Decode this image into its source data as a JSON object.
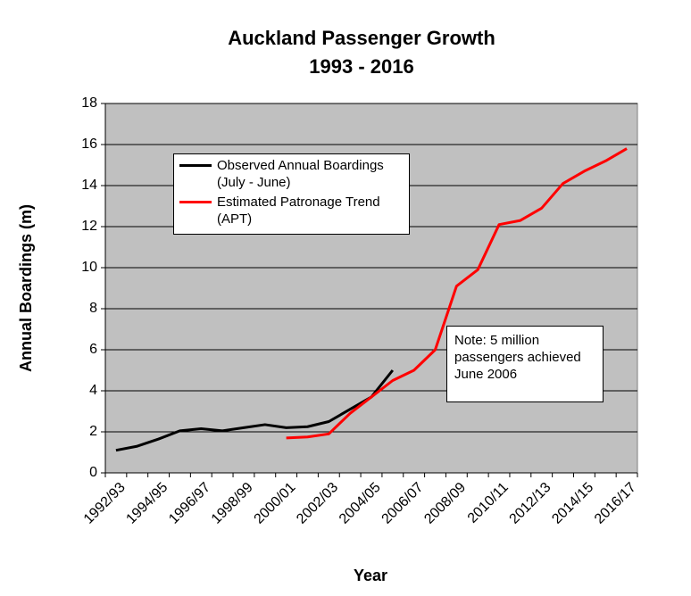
{
  "chart_data": {
    "type": "line",
    "title": "Auckland Passenger Growth",
    "subtitle": "1993 - 2016",
    "x_label": "Year",
    "y_label": "Annual Boardings (m)",
    "categories": [
      "1992/93",
      null,
      "1994/95",
      null,
      "1996/97",
      null,
      "1998/99",
      null,
      "2000/01",
      null,
      "2002/03",
      null,
      "2004/05",
      null,
      "2006/07",
      null,
      "2008/09",
      null,
      "2010/11",
      null,
      "2012/13",
      null,
      "2014/15",
      null,
      "2016/17"
    ],
    "series": [
      {
        "name": "Observed Annual Boardings (July - June)",
        "color": "#000000",
        "values": [
          1.1,
          1.3,
          1.65,
          2.05,
          2.15,
          2.05,
          2.2,
          2.35,
          2.2,
          2.25,
          2.5,
          3.1,
          3.7,
          5.0,
          null,
          null,
          null,
          null,
          null,
          null,
          null,
          null,
          null,
          null,
          null
        ]
      },
      {
        "name": "Estimated Patronage Trend (APT)",
        "color": "#ff0000",
        "values": [
          null,
          null,
          null,
          null,
          null,
          null,
          null,
          null,
          1.7,
          1.75,
          1.9,
          2.9,
          3.7,
          4.5,
          5.0,
          6.0,
          9.1,
          9.9,
          12.1,
          12.3,
          12.9,
          14.1,
          14.7,
          15.2,
          15.8
        ]
      }
    ],
    "annotation": "Note: 5 million passengers achieved June 2006",
    "ylim": [
      0,
      18
    ],
    "yticks": [
      0,
      2,
      4,
      6,
      8,
      10,
      12,
      14,
      16,
      18
    ],
    "grid": true,
    "background": "#c0c0c0"
  }
}
